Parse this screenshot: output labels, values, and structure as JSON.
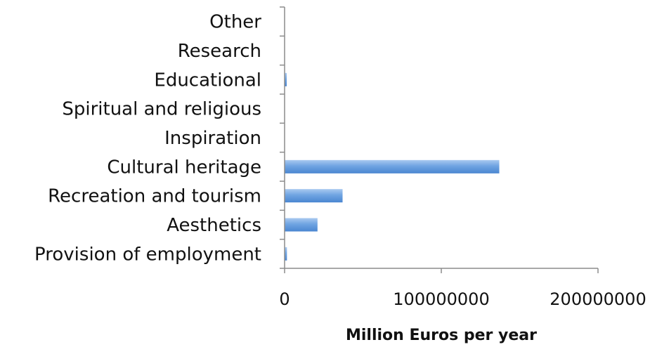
{
  "chart_data": {
    "type": "bar",
    "orientation": "horizontal",
    "title": "",
    "xlabel": "Million Euros per year",
    "ylabel": "",
    "categories": [
      "Provision of employment",
      "Aesthetics",
      "Recreation and tourism",
      "Cultural heritage ",
      "Inspiration",
      "Spiritual and religious ",
      "Educational",
      "Research",
      "Other"
    ],
    "values": [
      1500000,
      21000000,
      37000000,
      137000000,
      0,
      0,
      1000000,
      0,
      0
    ],
    "xlim": [
      0,
      200000000
    ],
    "xticks": [
      0,
      100000000,
      200000000
    ],
    "xtick_labels": [
      "0",
      "100000000",
      "200000000"
    ],
    "grid": false,
    "legend": "none",
    "bar_color": "#5b97dc"
  }
}
